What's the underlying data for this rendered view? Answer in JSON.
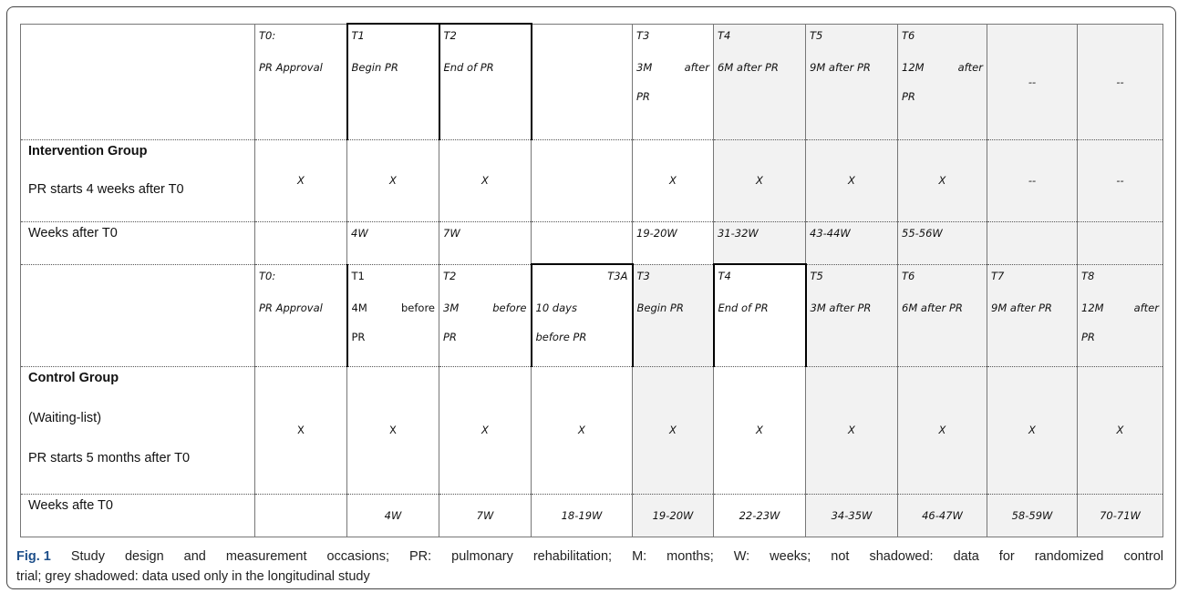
{
  "intervention": {
    "header": {
      "t0": [
        "T0:",
        "PR Approval"
      ],
      "t1": [
        "T1",
        "Begin PR"
      ],
      "t2": [
        "T2",
        "End of PR"
      ],
      "t3": [
        "T3",
        "3M",
        "after",
        "PR"
      ],
      "t4": [
        "T4",
        "6M after PR"
      ],
      "t5": [
        "T5",
        "9M after PR"
      ],
      "t6": [
        "T6",
        "12M",
        "after",
        "PR"
      ],
      "c9": "--",
      "c10": "--"
    },
    "group": {
      "title": "Intervention Group",
      "subtitle": "PR starts 4 weeks after T0",
      "marks": [
        "X",
        "X",
        "X",
        "",
        "X",
        "X",
        "X",
        "X",
        "--",
        "--"
      ]
    },
    "weeks": {
      "label": "Weeks after T0",
      "values": [
        "",
        "4W",
        "7W",
        "",
        "19-20W",
        "31-32W",
        "43-44W",
        "55-56W",
        "",
        ""
      ]
    }
  },
  "control": {
    "header": {
      "t0": [
        "T0:",
        "PR Approval"
      ],
      "t1": [
        "T1",
        "4M",
        "before",
        "PR"
      ],
      "t2": [
        "T2",
        "3M",
        "before",
        "PR"
      ],
      "t3a": [
        "T3A",
        "10 days",
        "before PR"
      ],
      "t3": [
        "T3",
        "Begin PR"
      ],
      "t4": [
        "T4",
        "End of PR"
      ],
      "t5": [
        "T5",
        "3M after PR"
      ],
      "t6": [
        "T6",
        "6M after PR"
      ],
      "t7": [
        "T7",
        "9M after PR"
      ],
      "t8": [
        "T8",
        "12M",
        "after",
        "PR"
      ]
    },
    "group": {
      "title": "Control Group",
      "line2": "(Waiting-list)",
      "line3": "PR starts 5 months after T0",
      "marks": [
        "X",
        "X",
        "X",
        "X",
        "X",
        "X",
        "X",
        "X",
        "X",
        "X"
      ]
    },
    "weeks": {
      "label": "Weeks afte T0",
      "values": [
        "",
        "4W",
        "7W",
        "18-19W",
        "19-20W",
        "22-23W",
        "34-35W",
        "46-47W",
        "58-59W",
        "70-71W"
      ]
    }
  },
  "caption": {
    "fig_label": "Fig. 1",
    "line1_words": [
      "Study",
      "design",
      "and",
      "measurement",
      "occasions;",
      "PR:",
      "pulmonary",
      "rehabilitation;",
      "M:",
      "months;",
      "W:",
      "weeks;",
      "not",
      "shadowed:",
      "data",
      "for",
      "randomized",
      "control"
    ],
    "line2": "trial; grey shadowed: data used only in the longitudinal study"
  },
  "colors": {
    "grey_shade": "#f2f2f2",
    "fig_label": "#1e4f8a"
  }
}
